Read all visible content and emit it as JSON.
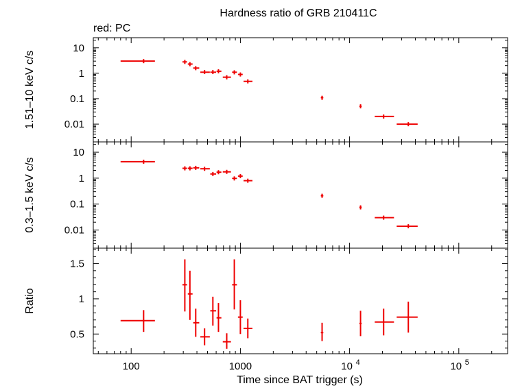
{
  "title": "Hardness ratio of GRB 210411C",
  "legend_note": "red: PC",
  "xlabel": "Time since BAT trigger (s)",
  "x_ticks": [
    {
      "value": 100,
      "base": "100",
      "exp": ""
    },
    {
      "value": 1000,
      "base": "1000",
      "exp": ""
    },
    {
      "value": 10000,
      "base": "10",
      "exp": "4"
    },
    {
      "value": 100000,
      "base": "10",
      "exp": "5"
    }
  ],
  "colors": {
    "data": "#ee0000",
    "axis": "#000000"
  },
  "chart_data": [
    {
      "type": "scatter",
      "panel": "hard",
      "ylabel": "1.51–10 keV c/s",
      "x_scale": "log",
      "y_scale": "log",
      "xlim": [
        45,
        280000
      ],
      "ylim": [
        0.002,
        25
      ],
      "y_ticks": [
        {
          "value": 10,
          "label": "10"
        },
        {
          "value": 1,
          "label": "1"
        },
        {
          "value": 0.1,
          "label": "0.1"
        },
        {
          "value": 0.01,
          "label": "0.01"
        }
      ],
      "points": [
        {
          "x": 130,
          "xlo": 80,
          "xhi": 165,
          "y": 3.0,
          "ylo": 3.0,
          "yhi": 3.0
        },
        {
          "x": 310,
          "xlo": 295,
          "xhi": 325,
          "y": 2.8,
          "ylo": 2.5,
          "yhi": 3.1
        },
        {
          "x": 345,
          "xlo": 330,
          "xhi": 365,
          "y": 2.3,
          "ylo": 2.0,
          "yhi": 2.6
        },
        {
          "x": 390,
          "xlo": 370,
          "xhi": 420,
          "y": 1.6,
          "ylo": 1.4,
          "yhi": 1.8
        },
        {
          "x": 470,
          "xlo": 430,
          "xhi": 525,
          "y": 1.1,
          "ylo": 1.0,
          "yhi": 1.25
        },
        {
          "x": 560,
          "xlo": 530,
          "xhi": 600,
          "y": 1.1,
          "ylo": 1.0,
          "yhi": 1.25
        },
        {
          "x": 630,
          "xlo": 605,
          "xhi": 670,
          "y": 1.2,
          "ylo": 1.05,
          "yhi": 1.35
        },
        {
          "x": 750,
          "xlo": 690,
          "xhi": 820,
          "y": 0.7,
          "ylo": 0.6,
          "yhi": 0.8
        },
        {
          "x": 880,
          "xlo": 840,
          "xhi": 930,
          "y": 1.1,
          "ylo": 0.95,
          "yhi": 1.25
        },
        {
          "x": 1000,
          "xlo": 950,
          "xhi": 1050,
          "y": 0.9,
          "ylo": 0.78,
          "yhi": 1.03
        },
        {
          "x": 1170,
          "xlo": 1070,
          "xhi": 1290,
          "y": 0.48,
          "ylo": 0.42,
          "yhi": 0.55
        },
        {
          "x": 5600,
          "xlo": 5450,
          "xhi": 5750,
          "y": 0.11,
          "ylo": 0.09,
          "yhi": 0.13
        },
        {
          "x": 12600,
          "xlo": 12300,
          "xhi": 12900,
          "y": 0.05,
          "ylo": 0.044,
          "yhi": 0.057
        },
        {
          "x": 20500,
          "xlo": 17000,
          "xhi": 25500,
          "y": 0.02,
          "ylo": 0.018,
          "yhi": 0.022
        },
        {
          "x": 34500,
          "xlo": 27000,
          "xhi": 42000,
          "y": 0.01,
          "ylo": 0.009,
          "yhi": 0.011
        }
      ]
    },
    {
      "type": "scatter",
      "panel": "soft",
      "ylabel": "0.3–1.5 keV c/s",
      "x_scale": "log",
      "y_scale": "log",
      "xlim": [
        45,
        280000
      ],
      "ylim": [
        0.002,
        25
      ],
      "y_ticks": [
        {
          "value": 10,
          "label": "10"
        },
        {
          "value": 1,
          "label": "1"
        },
        {
          "value": 0.1,
          "label": "0.1"
        },
        {
          "value": 0.01,
          "label": "0.01"
        }
      ],
      "points": [
        {
          "x": 130,
          "xlo": 80,
          "xhi": 165,
          "y": 4.3,
          "ylo": 4.2,
          "yhi": 4.4
        },
        {
          "x": 310,
          "xlo": 295,
          "xhi": 325,
          "y": 2.4,
          "ylo": 2.2,
          "yhi": 2.6
        },
        {
          "x": 345,
          "xlo": 330,
          "xhi": 365,
          "y": 2.4,
          "ylo": 2.2,
          "yhi": 2.6
        },
        {
          "x": 390,
          "xlo": 370,
          "xhi": 420,
          "y": 2.5,
          "ylo": 2.3,
          "yhi": 2.7
        },
        {
          "x": 470,
          "xlo": 430,
          "xhi": 525,
          "y": 2.3,
          "ylo": 2.1,
          "yhi": 2.5
        },
        {
          "x": 560,
          "xlo": 530,
          "xhi": 600,
          "y": 1.45,
          "ylo": 1.3,
          "yhi": 1.6
        },
        {
          "x": 630,
          "xlo": 605,
          "xhi": 670,
          "y": 1.7,
          "ylo": 1.55,
          "yhi": 1.85
        },
        {
          "x": 750,
          "xlo": 690,
          "xhi": 820,
          "y": 1.75,
          "ylo": 1.6,
          "yhi": 1.9
        },
        {
          "x": 880,
          "xlo": 840,
          "xhi": 930,
          "y": 0.98,
          "ylo": 0.88,
          "yhi": 1.08
        },
        {
          "x": 1000,
          "xlo": 950,
          "xhi": 1050,
          "y": 1.2,
          "ylo": 1.1,
          "yhi": 1.3
        },
        {
          "x": 1170,
          "xlo": 1070,
          "xhi": 1290,
          "y": 0.8,
          "ylo": 0.72,
          "yhi": 0.88
        },
        {
          "x": 5600,
          "xlo": 5450,
          "xhi": 5750,
          "y": 0.21,
          "ylo": 0.19,
          "yhi": 0.23
        },
        {
          "x": 12600,
          "xlo": 12300,
          "xhi": 12900,
          "y": 0.075,
          "ylo": 0.068,
          "yhi": 0.082
        },
        {
          "x": 20500,
          "xlo": 17000,
          "xhi": 25500,
          "y": 0.03,
          "ylo": 0.028,
          "yhi": 0.032
        },
        {
          "x": 34500,
          "xlo": 27000,
          "xhi": 42000,
          "y": 0.014,
          "ylo": 0.013,
          "yhi": 0.015
        }
      ]
    },
    {
      "type": "scatter",
      "panel": "ratio",
      "ylabel": "Ratio",
      "x_scale": "log",
      "y_scale": "linear",
      "xlim": [
        45,
        280000
      ],
      "ylim": [
        0.22,
        1.72
      ],
      "y_ticks": [
        {
          "value": 1.5,
          "label": "1.5"
        },
        {
          "value": 1,
          "label": "1"
        },
        {
          "value": 0.5,
          "label": "0.5"
        }
      ],
      "points": [
        {
          "x": 130,
          "xlo": 80,
          "xhi": 165,
          "y": 0.69,
          "ylo": 0.53,
          "yhi": 0.84
        },
        {
          "x": 310,
          "xlo": 295,
          "xhi": 325,
          "y": 1.2,
          "ylo": 0.82,
          "yhi": 1.56
        },
        {
          "x": 345,
          "xlo": 330,
          "xhi": 365,
          "y": 1.07,
          "ylo": 0.7,
          "yhi": 1.4
        },
        {
          "x": 390,
          "xlo": 370,
          "xhi": 420,
          "y": 0.66,
          "ylo": 0.46,
          "yhi": 0.86
        },
        {
          "x": 470,
          "xlo": 430,
          "xhi": 525,
          "y": 0.46,
          "ylo": 0.34,
          "yhi": 0.58
        },
        {
          "x": 560,
          "xlo": 530,
          "xhi": 600,
          "y": 0.83,
          "ylo": 0.62,
          "yhi": 1.03
        },
        {
          "x": 630,
          "xlo": 605,
          "xhi": 670,
          "y": 0.73,
          "ylo": 0.53,
          "yhi": 0.94
        },
        {
          "x": 750,
          "xlo": 690,
          "xhi": 820,
          "y": 0.39,
          "ylo": 0.29,
          "yhi": 0.51
        },
        {
          "x": 880,
          "xlo": 840,
          "xhi": 930,
          "y": 1.2,
          "ylo": 0.85,
          "yhi": 1.56
        },
        {
          "x": 1000,
          "xlo": 950,
          "xhi": 1050,
          "y": 0.74,
          "ylo": 0.5,
          "yhi": 0.98
        },
        {
          "x": 1170,
          "xlo": 1070,
          "xhi": 1290,
          "y": 0.58,
          "ylo": 0.44,
          "yhi": 0.72
        },
        {
          "x": 5600,
          "xlo": 5450,
          "xhi": 5750,
          "y": 0.52,
          "ylo": 0.4,
          "yhi": 0.66
        },
        {
          "x": 12600,
          "xlo": 12300,
          "xhi": 12900,
          "y": 0.65,
          "ylo": 0.47,
          "yhi": 0.83
        },
        {
          "x": 20500,
          "xlo": 17000,
          "xhi": 25500,
          "y": 0.67,
          "ylo": 0.48,
          "yhi": 0.86
        },
        {
          "x": 34500,
          "xlo": 27000,
          "xhi": 42000,
          "y": 0.74,
          "ylo": 0.52,
          "yhi": 0.96
        }
      ]
    }
  ]
}
